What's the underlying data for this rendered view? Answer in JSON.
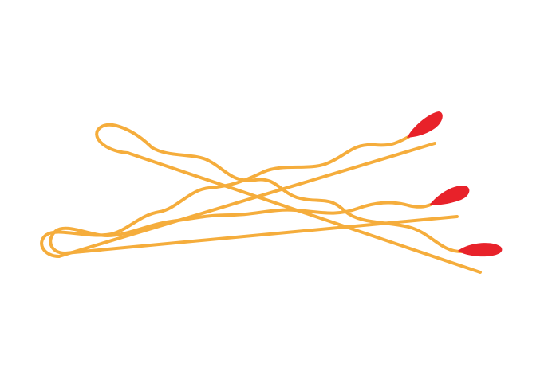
{
  "illustration": {
    "subject": "bobby-pins",
    "pin_count": 3,
    "colors": {
      "background": "#ffffff",
      "pin_wire": "#f5ad3c",
      "pin_tip": "#e8222a"
    }
  }
}
